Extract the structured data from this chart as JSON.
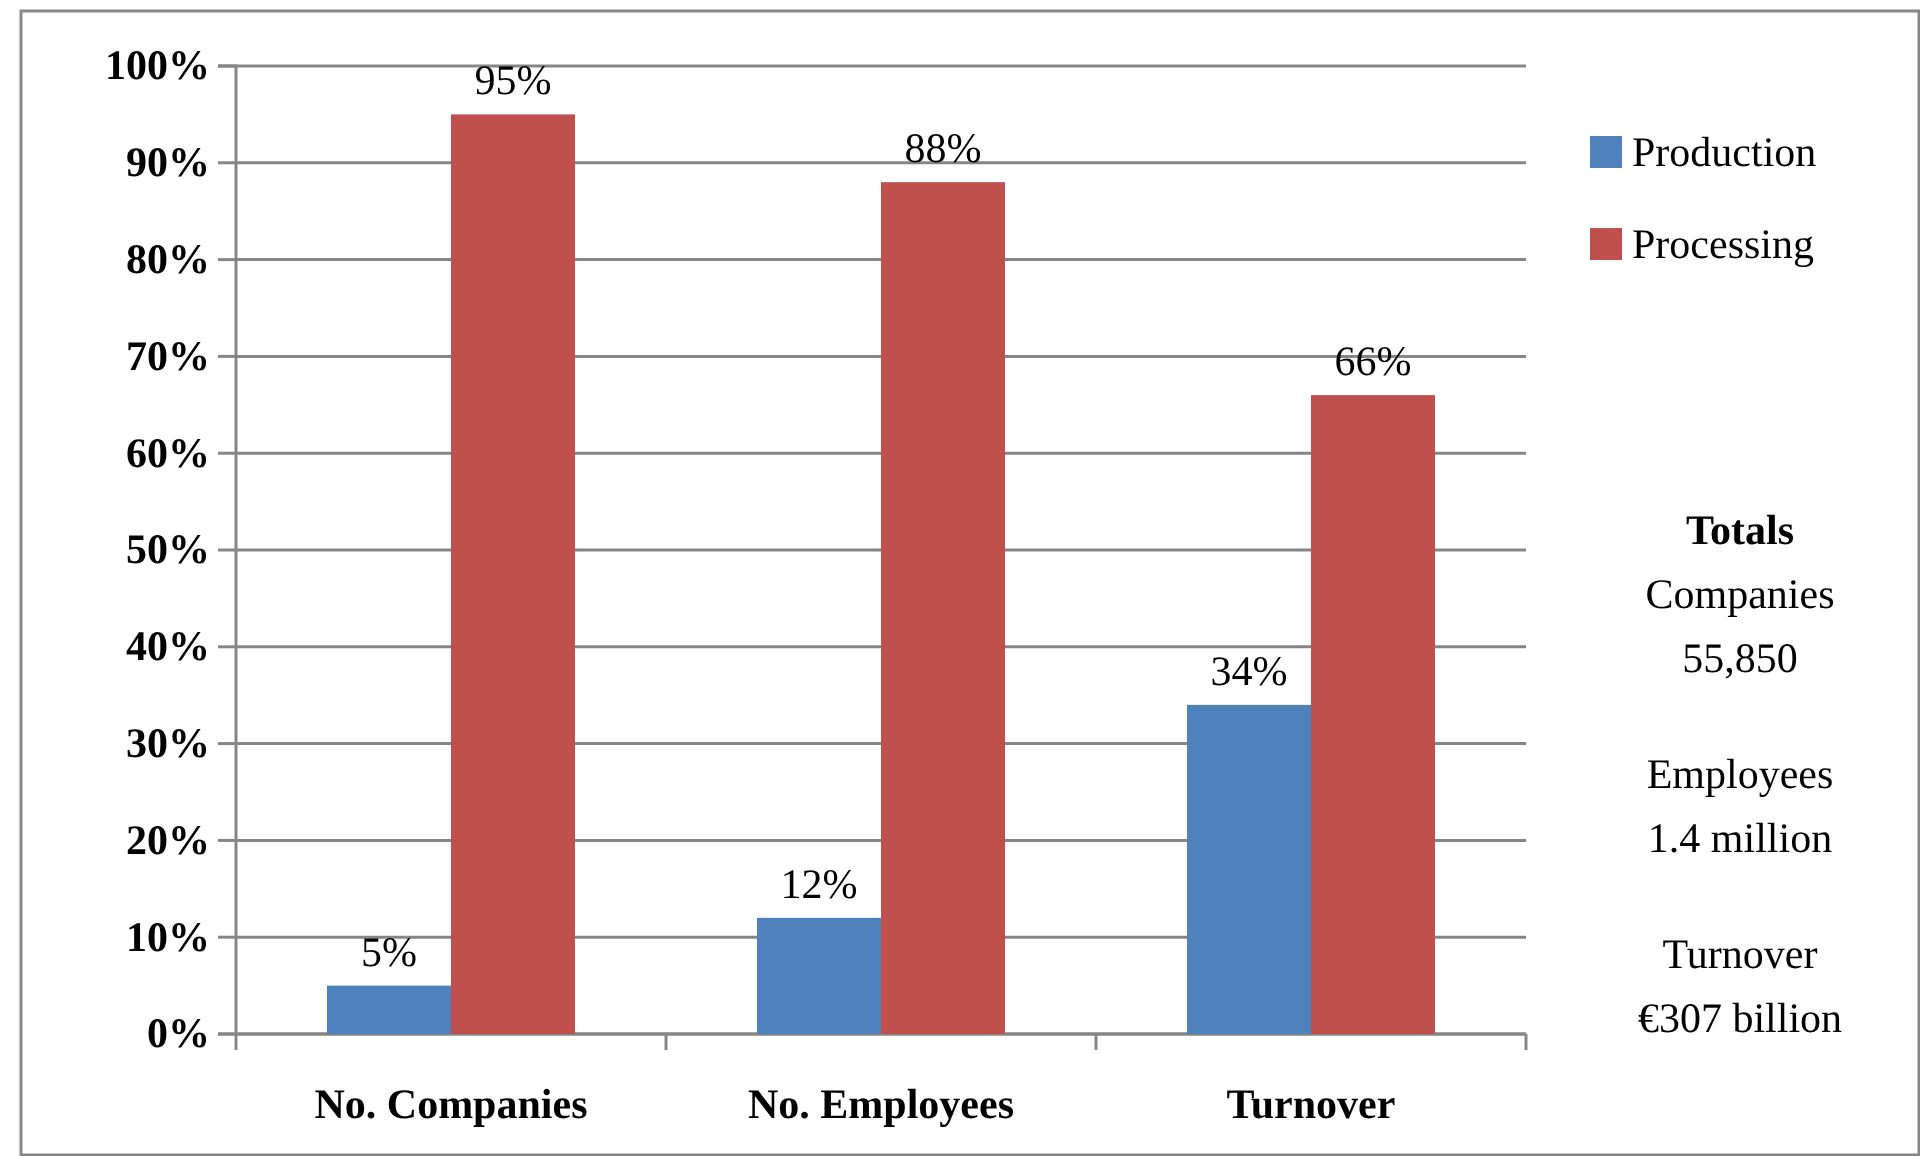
{
  "chart_data": {
    "type": "bar",
    "categories": [
      "No. Companies",
      "No. Employees",
      "Turnover"
    ],
    "series": [
      {
        "name": "Production",
        "color": "#4f81bd",
        "values": [
          5,
          12,
          34
        ],
        "value_labels": [
          "5%",
          "12%",
          "34%"
        ]
      },
      {
        "name": "Processing",
        "color": "#c0504d",
        "values": [
          95,
          88,
          66
        ],
        "value_labels": [
          "95%",
          "88%",
          "66%"
        ]
      }
    ],
    "ylim": [
      0,
      100
    ],
    "yticks": [
      {
        "value": 0,
        "label": "0%"
      },
      {
        "value": 10,
        "label": "10%"
      },
      {
        "value": 20,
        "label": "20%"
      },
      {
        "value": 30,
        "label": "30%"
      },
      {
        "value": 40,
        "label": "40%"
      },
      {
        "value": 50,
        "label": "50%"
      },
      {
        "value": 60,
        "label": "60%"
      },
      {
        "value": 70,
        "label": "70%"
      },
      {
        "value": 80,
        "label": "80%"
      },
      {
        "value": 90,
        "label": "90%"
      },
      {
        "value": 100,
        "label": "100%"
      }
    ],
    "grid": "y",
    "legend": "right",
    "annotations": [
      "Totals",
      "Companies\n55,850",
      "Employees\n1.4 million",
      "Turnover\n€307 billion"
    ]
  }
}
